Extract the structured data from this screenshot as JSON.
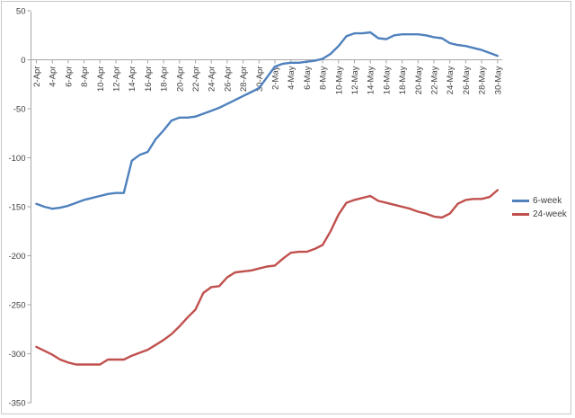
{
  "chart_data": {
    "type": "line",
    "title": "",
    "xlabel": "",
    "ylabel": "",
    "grid": "off",
    "legend_position": "right",
    "ylim": [
      -350,
      50
    ],
    "y_ticks": [
      "50",
      "0",
      "-50",
      "-100",
      "-150",
      "-200",
      "-250",
      "-300",
      "-350"
    ],
    "x_tick_labels": [
      "2-Apr",
      "4-Apr",
      "6-Apr",
      "8-Apr",
      "10-Apr",
      "12-Apr",
      "14-Apr",
      "16-Apr",
      "18-Apr",
      "20-Apr",
      "22-Apr",
      "24-Apr",
      "26-Apr",
      "28-Apr",
      "30-Apr",
      "2-May",
      "4-May",
      "6-May",
      "8-May",
      "10-May",
      "12-May",
      "14-May",
      "16-May",
      "18-May",
      "20-May",
      "22-May",
      "24-May",
      "26-May",
      "28-May",
      "30-May"
    ],
    "x": [
      "2-Apr",
      "3-Apr",
      "4-Apr",
      "5-Apr",
      "6-Apr",
      "7-Apr",
      "8-Apr",
      "9-Apr",
      "10-Apr",
      "11-Apr",
      "12-Apr",
      "13-Apr",
      "14-Apr",
      "15-Apr",
      "16-Apr",
      "17-Apr",
      "18-Apr",
      "19-Apr",
      "20-Apr",
      "21-Apr",
      "22-Apr",
      "23-Apr",
      "24-Apr",
      "25-Apr",
      "26-Apr",
      "27-Apr",
      "28-Apr",
      "29-Apr",
      "30-Apr",
      "1-May",
      "2-May",
      "3-May",
      "4-May",
      "5-May",
      "6-May",
      "7-May",
      "8-May",
      "9-May",
      "10-May",
      "11-May",
      "12-May",
      "13-May",
      "14-May",
      "15-May",
      "16-May",
      "17-May",
      "18-May",
      "19-May",
      "20-May",
      "21-May",
      "22-May",
      "23-May",
      "24-May",
      "25-May",
      "26-May",
      "27-May",
      "28-May",
      "29-May",
      "30-May"
    ],
    "series": [
      {
        "name": "6-week",
        "color": "#4F81BD",
        "values": [
          -147,
          -150,
          -152,
          -151,
          -149,
          -146,
          -143,
          -141,
          -139,
          -137,
          -136,
          -136,
          -103,
          -97,
          -94,
          -81,
          -72,
          -62,
          -59,
          -59,
          -58,
          -55,
          -52,
          -49,
          -45,
          -41,
          -37,
          -33,
          -29,
          -18,
          -7,
          -4,
          -3,
          -3,
          -2,
          -1,
          1,
          6,
          14,
          24,
          27,
          27,
          28,
          22,
          21,
          25,
          26,
          26,
          26,
          25,
          23,
          22,
          17,
          15,
          14,
          12,
          10,
          7,
          4
        ]
      },
      {
        "name": "24-week",
        "color": "#C0504D",
        "values": [
          -293,
          -297,
          -301,
          -306,
          -309,
          -311,
          -311,
          -311,
          -311,
          -306,
          -306,
          -306,
          -302,
          -299,
          -296,
          -291,
          -286,
          -280,
          -272,
          -263,
          -255,
          -238,
          -232,
          -231,
          -222,
          -217,
          -216,
          -215,
          -213,
          -211,
          -210,
          -203,
          -197,
          -196,
          -196,
          -193,
          -189,
          -175,
          -158,
          -146,
          -143,
          -141,
          -139,
          -144,
          -146,
          -148,
          -150,
          -152,
          -155,
          -157,
          -160,
          -161,
          -157,
          -147,
          -143,
          -142,
          -142,
          -140,
          -133
        ]
      }
    ],
    "axis_color": "#a6a6a6",
    "tick_label_color": "#404040"
  },
  "legend": {
    "items": [
      {
        "label": "6-week"
      },
      {
        "label": "24-week"
      }
    ]
  }
}
